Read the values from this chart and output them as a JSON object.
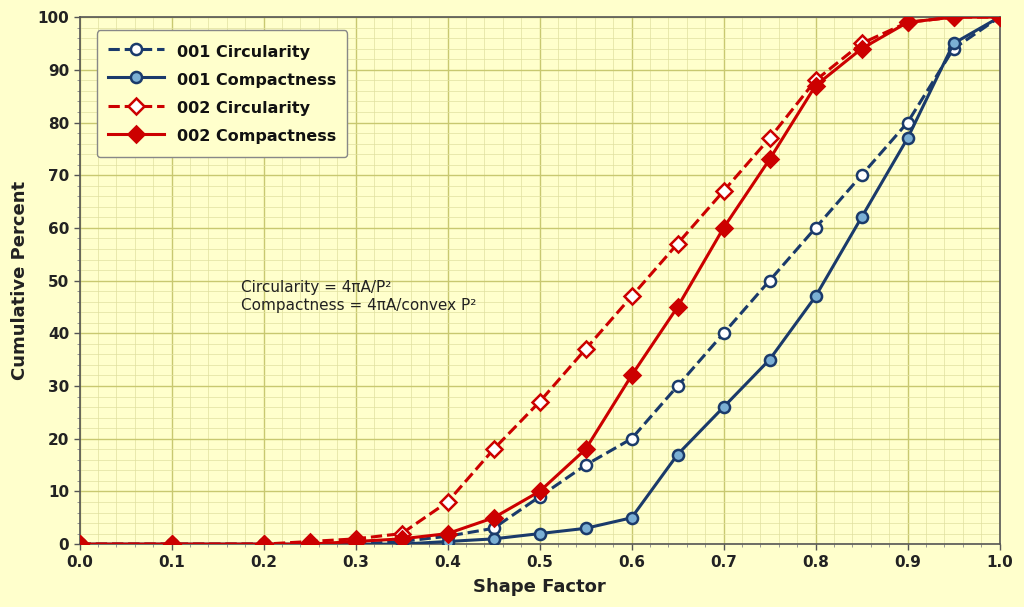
{
  "title": "",
  "xlabel": "Shape Factor",
  "ylabel": "Cumulative Percent",
  "xlim": [
    0.0,
    1.0
  ],
  "ylim": [
    0,
    100
  ],
  "background_color": "#FFFFCC",
  "plot_bg_color": "#FFFFCC",
  "annotation_text1": "Circularity = 4πA/P²",
  "annotation_text2": "Compactness = 4πA/convex P²",
  "series": {
    "001_circularity": {
      "x": [
        0.0,
        0.1,
        0.2,
        0.3,
        0.35,
        0.4,
        0.45,
        0.5,
        0.55,
        0.6,
        0.65,
        0.7,
        0.75,
        0.8,
        0.85,
        0.9,
        0.95,
        1.0
      ],
      "y": [
        0,
        0,
        0,
        0,
        0.5,
        1.5,
        3,
        9,
        15,
        20,
        30,
        40,
        50,
        60,
        70,
        80,
        94,
        100
      ],
      "color": "#1a3a6b",
      "linestyle": "dashed",
      "marker": "o",
      "marker_facecolor": "white",
      "label": "001 Circularity",
      "linewidth": 2.2,
      "markersize": 8
    },
    "001_compactness": {
      "x": [
        0.0,
        0.1,
        0.2,
        0.3,
        0.35,
        0.4,
        0.45,
        0.5,
        0.55,
        0.6,
        0.65,
        0.7,
        0.75,
        0.8,
        0.85,
        0.9,
        0.95,
        1.0
      ],
      "y": [
        0,
        0,
        0,
        0,
        0,
        0.5,
        1,
        2,
        3,
        5,
        17,
        26,
        35,
        47,
        62,
        77,
        95,
        100
      ],
      "color": "#1a3a6b",
      "linestyle": "solid",
      "marker": "o",
      "marker_facecolor": "#7bafd4",
      "label": "001 Compactness",
      "linewidth": 2.2,
      "markersize": 8
    },
    "002_circularity": {
      "x": [
        0.0,
        0.1,
        0.2,
        0.25,
        0.3,
        0.35,
        0.4,
        0.45,
        0.5,
        0.55,
        0.6,
        0.65,
        0.7,
        0.75,
        0.8,
        0.85,
        0.9,
        0.95,
        1.0
      ],
      "y": [
        0,
        0,
        0,
        0.5,
        1,
        2,
        8,
        18,
        27,
        37,
        47,
        57,
        67,
        77,
        88,
        95,
        99,
        100,
        100
      ],
      "color": "#cc0000",
      "linestyle": "dashed",
      "marker": "D",
      "marker_facecolor": "white",
      "label": "002 Circularity",
      "linewidth": 2.2,
      "markersize": 8
    },
    "002_compactness": {
      "x": [
        0.0,
        0.1,
        0.2,
        0.25,
        0.3,
        0.35,
        0.4,
        0.45,
        0.5,
        0.55,
        0.6,
        0.65,
        0.7,
        0.75,
        0.8,
        0.85,
        0.9,
        0.95,
        1.0
      ],
      "y": [
        0,
        0,
        0,
        0,
        0.5,
        1,
        2,
        5,
        10,
        18,
        32,
        45,
        60,
        73,
        87,
        94,
        99,
        100,
        100
      ],
      "color": "#cc0000",
      "linestyle": "solid",
      "marker": "D",
      "marker_facecolor": "#cc0000",
      "label": "002 Compactness",
      "linewidth": 2.2,
      "markersize": 8
    }
  },
  "xticks": [
    0.0,
    0.1,
    0.2,
    0.3,
    0.4,
    0.5,
    0.6,
    0.7,
    0.8,
    0.9,
    1.0
  ],
  "yticks": [
    0,
    10,
    20,
    30,
    40,
    50,
    60,
    70,
    80,
    90,
    100
  ],
  "grid_major_color": "#c8c870",
  "grid_minor_color": "#e0e0a0",
  "figsize": [
    10.24,
    6.07
  ],
  "dpi": 100
}
